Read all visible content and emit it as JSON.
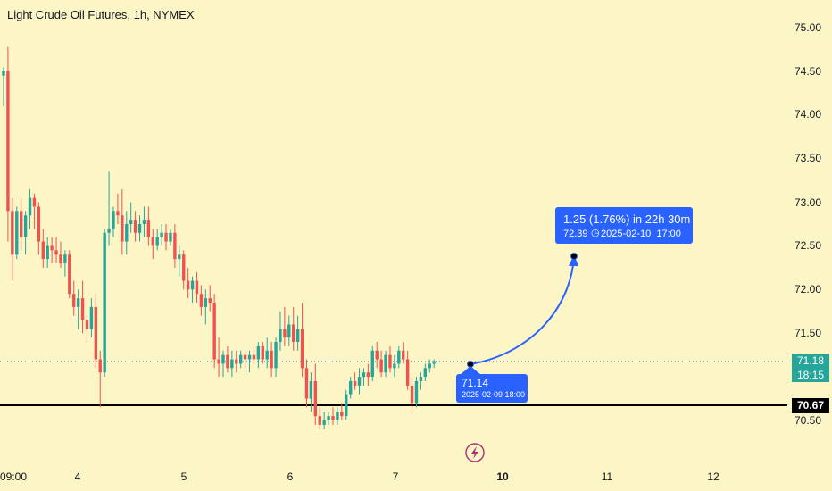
{
  "header": {
    "title": "Light Crude Oil Futures, 1h, NYMEX"
  },
  "price_tags": {
    "last_price": "71.18",
    "countdown": "18:15",
    "level_price": "70.67"
  },
  "callout_top": {
    "change": "1.25 (1.76%) in 22h 30m",
    "target_price": "72.39",
    "target_time": "2025-02-10  17:00"
  },
  "callout_bottom": {
    "price": "71.14",
    "time": "2025-02-09 18:00"
  },
  "colors": {
    "background": "#fcf5c5",
    "up": "#26a69a",
    "down": "#ef5350",
    "accent": "#2962ff",
    "level_line": "#000000"
  },
  "icons": {
    "bottom": "lightning-icon"
  },
  "chart_data": {
    "type": "candlestick",
    "title": "Light Crude Oil Futures, 1h, NYMEX",
    "x_ticks": [
      "09:00",
      "4",
      "5",
      "6",
      "7",
      "10",
      "11",
      "12"
    ],
    "y_ticks": [
      "75.00",
      "74.50",
      "74.00",
      "73.50",
      "73.00",
      "72.50",
      "72.00",
      "71.50",
      "71.00",
      "70.50"
    ],
    "ylim": [
      70.3,
      75.1
    ],
    "grid": false,
    "horizontal_level": 70.67,
    "last_price": 71.18,
    "projection": {
      "from": 71.14,
      "to": 72.39,
      "change_pct": 1.76
    },
    "ohlc": [
      [
        74.45,
        74.55,
        74.1,
        74.5
      ],
      [
        74.5,
        74.78,
        72.55,
        72.9
      ],
      [
        72.9,
        73.05,
        72.1,
        72.4
      ],
      [
        72.4,
        72.95,
        72.35,
        72.9
      ],
      [
        72.9,
        73.05,
        72.45,
        72.6
      ],
      [
        72.6,
        72.9,
        72.4,
        72.85
      ],
      [
        72.85,
        73.15,
        72.7,
        73.05
      ],
      [
        73.05,
        73.1,
        72.7,
        72.95
      ],
      [
        72.95,
        73.0,
        72.4,
        72.55
      ],
      [
        72.55,
        72.7,
        72.25,
        72.35
      ],
      [
        72.35,
        72.6,
        72.25,
        72.5
      ],
      [
        72.5,
        72.6,
        72.3,
        72.45
      ],
      [
        72.45,
        72.6,
        72.3,
        72.4
      ],
      [
        72.4,
        72.55,
        72.25,
        72.3
      ],
      [
        72.3,
        72.45,
        72.15,
        72.4
      ],
      [
        72.4,
        72.45,
        71.9,
        71.95
      ],
      [
        71.95,
        72.1,
        71.7,
        71.8
      ],
      [
        71.8,
        72.0,
        71.55,
        71.9
      ],
      [
        71.9,
        72.1,
        71.5,
        71.65
      ],
      [
        71.65,
        71.7,
        71.4,
        71.55
      ],
      [
        71.55,
        71.9,
        71.45,
        71.8
      ],
      [
        71.8,
        71.95,
        71.1,
        71.2
      ],
      [
        71.2,
        71.3,
        70.65,
        71.05
      ],
      [
        71.05,
        72.7,
        71.0,
        72.65
      ],
      [
        72.65,
        73.35,
        72.5,
        72.7
      ],
      [
        72.7,
        72.95,
        72.6,
        72.9
      ],
      [
        72.9,
        73.1,
        72.75,
        72.85
      ],
      [
        72.85,
        73.15,
        72.4,
        72.55
      ],
      [
        72.55,
        72.9,
        72.4,
        72.75
      ],
      [
        72.75,
        73.0,
        72.65,
        72.8
      ],
      [
        72.8,
        72.9,
        72.55,
        72.65
      ],
      [
        72.65,
        72.85,
        72.55,
        72.75
      ],
      [
        72.75,
        72.95,
        72.6,
        72.8
      ],
      [
        72.8,
        72.95,
        72.5,
        72.6
      ],
      [
        72.6,
        72.7,
        72.35,
        72.5
      ],
      [
        72.5,
        72.7,
        72.45,
        72.6
      ],
      [
        72.6,
        72.75,
        72.5,
        72.65
      ],
      [
        72.65,
        72.75,
        72.45,
        72.55
      ],
      [
        72.55,
        72.7,
        72.5,
        72.65
      ],
      [
        72.65,
        72.75,
        72.25,
        72.35
      ],
      [
        72.35,
        72.5,
        72.15,
        72.4
      ],
      [
        72.4,
        72.45,
        72.0,
        72.1
      ],
      [
        72.1,
        72.25,
        71.9,
        72.0
      ],
      [
        72.0,
        72.15,
        71.85,
        72.1
      ],
      [
        72.1,
        72.2,
        71.85,
        71.95
      ],
      [
        71.95,
        72.05,
        71.7,
        71.8
      ],
      [
        71.8,
        72.0,
        71.6,
        71.9
      ],
      [
        71.9,
        72.05,
        71.75,
        71.85
      ],
      [
        71.85,
        71.95,
        71.1,
        71.2
      ],
      [
        71.2,
        71.45,
        71.0,
        71.15
      ],
      [
        71.15,
        71.3,
        71.0,
        71.25
      ],
      [
        71.25,
        71.35,
        71.05,
        71.1
      ],
      [
        71.1,
        71.3,
        71.0,
        71.2
      ],
      [
        71.2,
        71.3,
        71.05,
        71.15
      ],
      [
        71.15,
        71.3,
        71.1,
        71.25
      ],
      [
        71.25,
        71.3,
        71.1,
        71.2
      ],
      [
        71.2,
        71.3,
        71.05,
        71.25
      ],
      [
        71.25,
        71.35,
        71.15,
        71.2
      ],
      [
        71.2,
        71.4,
        71.1,
        71.35
      ],
      [
        71.35,
        71.4,
        71.15,
        71.2
      ],
      [
        71.2,
        71.45,
        71.1,
        71.3
      ],
      [
        71.3,
        71.4,
        71.0,
        71.1
      ],
      [
        71.1,
        71.45,
        71.0,
        71.4
      ],
      [
        71.4,
        71.75,
        71.3,
        71.55
      ],
      [
        71.55,
        71.8,
        71.35,
        71.45
      ],
      [
        71.45,
        71.7,
        71.35,
        71.6
      ],
      [
        71.6,
        71.8,
        71.3,
        71.4
      ],
      [
        71.4,
        71.7,
        71.3,
        71.55
      ],
      [
        71.55,
        71.85,
        71.0,
        71.1
      ],
      [
        71.1,
        71.2,
        70.65,
        70.75
      ],
      [
        70.75,
        71.05,
        70.6,
        70.95
      ],
      [
        70.95,
        71.15,
        70.45,
        70.55
      ],
      [
        70.55,
        70.65,
        70.4,
        70.45
      ],
      [
        70.45,
        70.6,
        70.4,
        70.5
      ],
      [
        70.5,
        70.6,
        70.45,
        70.55
      ],
      [
        70.55,
        70.65,
        70.45,
        70.5
      ],
      [
        70.5,
        70.65,
        70.45,
        70.6
      ],
      [
        70.6,
        70.7,
        70.5,
        70.55
      ],
      [
        70.55,
        70.85,
        70.5,
        70.8
      ],
      [
        70.8,
        71.0,
        70.75,
        70.95
      ],
      [
        70.95,
        71.05,
        70.85,
        70.9
      ],
      [
        70.9,
        71.1,
        70.8,
        71.0
      ],
      [
        71.0,
        71.1,
        70.9,
        71.05
      ],
      [
        71.05,
        71.15,
        70.9,
        71.0
      ],
      [
        71.0,
        71.35,
        70.95,
        71.3
      ],
      [
        71.3,
        71.4,
        71.1,
        71.2
      ],
      [
        71.2,
        71.3,
        71.0,
        71.05
      ],
      [
        71.05,
        71.3,
        71.0,
        71.25
      ],
      [
        71.25,
        71.35,
        71.05,
        71.1
      ],
      [
        71.1,
        71.25,
        71.0,
        71.15
      ],
      [
        71.15,
        71.35,
        71.1,
        71.3
      ],
      [
        71.3,
        71.4,
        71.15,
        71.2
      ],
      [
        71.2,
        71.3,
        70.85,
        70.9
      ],
      [
        70.9,
        71.0,
        70.6,
        70.7
      ],
      [
        70.7,
        71.0,
        70.65,
        70.95
      ],
      [
        70.95,
        71.05,
        70.85,
        71.0
      ],
      [
        71.0,
        71.15,
        70.95,
        71.1
      ],
      [
        71.1,
        71.2,
        71.05,
        71.15
      ],
      [
        71.15,
        71.2,
        71.1,
        71.18
      ]
    ]
  }
}
